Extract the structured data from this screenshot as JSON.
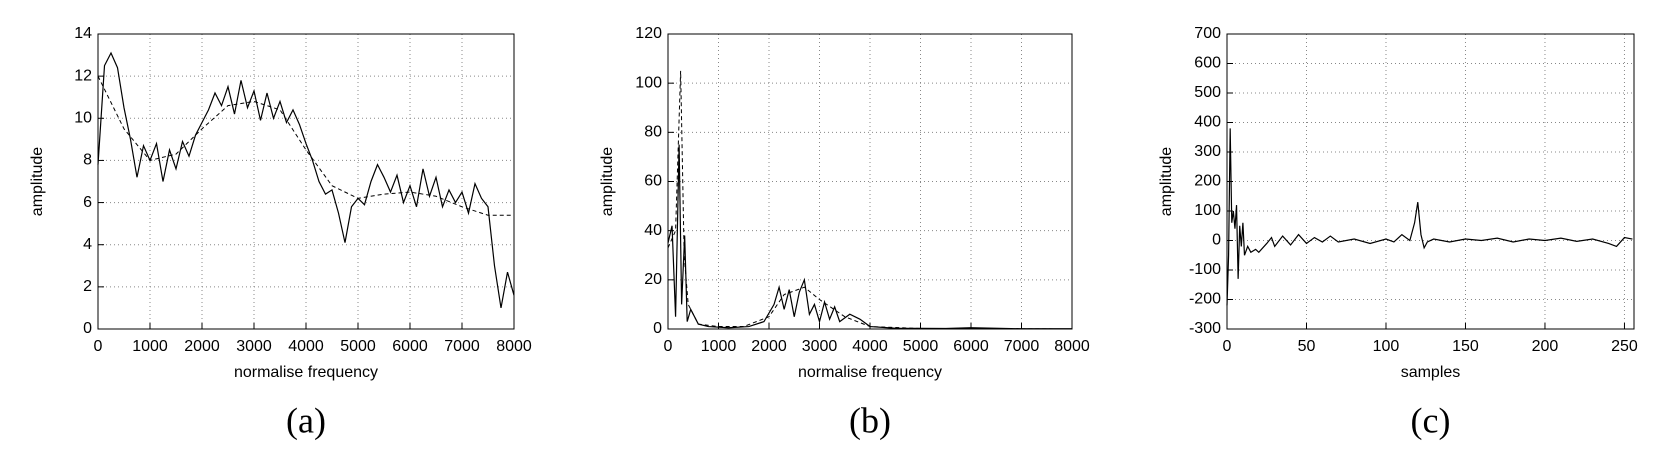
{
  "chart_data": [
    {
      "type": "line",
      "caption": "(a)",
      "xlabel": "normalise frequency",
      "ylabel": "amplitude",
      "xlim": [
        0,
        8000
      ],
      "xticks": [
        0,
        1000,
        2000,
        3000,
        4000,
        5000,
        6000,
        7000,
        8000
      ],
      "ylim": [
        0,
        14
      ],
      "yticks": [
        0,
        2,
        4,
        6,
        8,
        10,
        12,
        14
      ],
      "grid": true,
      "series": [
        {
          "color": "#000000",
          "style": "solid",
          "x": [
            0,
            125,
            250,
            375,
            500,
            625,
            750,
            875,
            1000,
            1125,
            1250,
            1375,
            1500,
            1625,
            1750,
            1875,
            2000,
            2125,
            2250,
            2375,
            2500,
            2625,
            2750,
            2875,
            3000,
            3125,
            3250,
            3375,
            3500,
            3625,
            3750,
            3875,
            4000,
            4125,
            4250,
            4375,
            4500,
            4625,
            4750,
            4875,
            5000,
            5125,
            5250,
            5375,
            5500,
            5625,
            5750,
            5875,
            6000,
            6125,
            6250,
            6375,
            6500,
            6625,
            6750,
            6875,
            7000,
            7125,
            7250,
            7375,
            7500,
            7625,
            7750,
            7875,
            8000
          ],
          "values": [
            7.8,
            12.5,
            13.1,
            12.4,
            10.5,
            9.0,
            7.2,
            8.7,
            8.0,
            8.8,
            7.0,
            8.5,
            7.6,
            8.9,
            8.2,
            9.2,
            9.8,
            10.4,
            11.2,
            10.6,
            11.5,
            10.2,
            11.8,
            10.5,
            11.3,
            9.9,
            11.2,
            10.0,
            10.8,
            9.8,
            10.4,
            9.7,
            8.8,
            8.0,
            7.0,
            6.4,
            6.6,
            5.5,
            4.1,
            5.8,
            6.2,
            5.9,
            7.0,
            7.8,
            7.2,
            6.5,
            7.3,
            6.0,
            6.8,
            5.8,
            7.6,
            6.3,
            7.2,
            5.8,
            6.6,
            6.0,
            6.5,
            5.5,
            6.9,
            6.2,
            5.8,
            3.0,
            1.0,
            2.7,
            1.6
          ]
        },
        {
          "color": "#000000",
          "style": "dashed",
          "x": [
            0,
            500,
            1000,
            1500,
            2000,
            2500,
            3000,
            3500,
            4000,
            4500,
            5000,
            5500,
            6000,
            6500,
            7000,
            7500,
            8000
          ],
          "values": [
            12,
            9.5,
            8.0,
            8.3,
            9.5,
            10.6,
            10.8,
            10.4,
            8.5,
            6.8,
            6.2,
            6.4,
            6.5,
            6.3,
            5.8,
            5.4,
            5.4
          ]
        }
      ]
    },
    {
      "type": "line",
      "caption": "(b)",
      "xlabel": "normalise frequency",
      "ylabel": "amplitude",
      "xlim": [
        0,
        8000
      ],
      "xticks": [
        0,
        1000,
        2000,
        3000,
        4000,
        5000,
        6000,
        7000,
        8000
      ],
      "ylim": [
        0,
        120
      ],
      "yticks": [
        0,
        20,
        40,
        60,
        80,
        100,
        120
      ],
      "grid": true,
      "series": [
        {
          "color": "#000000",
          "style": "solid",
          "x": [
            0,
            80,
            150,
            220,
            270,
            330,
            380,
            450,
            600,
            800,
            1200,
            1600,
            1900,
            2100,
            2200,
            2300,
            2400,
            2500,
            2600,
            2700,
            2800,
            2900,
            3000,
            3100,
            3200,
            3300,
            3400,
            3600,
            3800,
            4000,
            4500,
            5500,
            6000,
            7000,
            8000
          ],
          "values": [
            35,
            42,
            5,
            75,
            10,
            38,
            3,
            8,
            2,
            1,
            0.5,
            1,
            3,
            10,
            17,
            8,
            16,
            5,
            15,
            20,
            6,
            10,
            3,
            11,
            4,
            9,
            3,
            6,
            4,
            1,
            0.3,
            0.2,
            0.5,
            0.1,
            0.1
          ]
        },
        {
          "color": "#000000",
          "style": "dashed",
          "x": [
            0,
            150,
            250,
            320,
            400,
            600,
            1000,
            1500,
            2000,
            2300,
            2700,
            3000,
            3500,
            4000,
            5000,
            8000
          ],
          "values": [
            33,
            40,
            105,
            30,
            10,
            2,
            1,
            1,
            5,
            14,
            17,
            12,
            5,
            1,
            0.2,
            0
          ]
        }
      ]
    },
    {
      "type": "line",
      "caption": "(c)",
      "xlabel": "samples",
      "ylabel": "amplitude",
      "xlim": [
        0,
        256
      ],
      "xticks": [
        0,
        50,
        100,
        150,
        200,
        250
      ],
      "ylim": [
        -300,
        700
      ],
      "yticks": [
        -300,
        -200,
        -100,
        0,
        100,
        200,
        300,
        400,
        500,
        600,
        700
      ],
      "grid": true,
      "series": [
        {
          "color": "#000000",
          "style": "solid",
          "x": [
            0,
            1,
            2,
            3,
            4,
            5,
            6,
            7,
            8,
            9,
            10,
            11,
            13,
            15,
            18,
            20,
            25,
            28,
            30,
            35,
            40,
            45,
            50,
            55,
            60,
            65,
            70,
            80,
            90,
            100,
            105,
            110,
            115,
            118,
            120,
            122,
            124,
            126,
            130,
            140,
            150,
            160,
            170,
            180,
            190,
            200,
            210,
            220,
            230,
            240,
            245,
            250,
            255
          ],
          "values": [
            -220,
            -50,
            380,
            60,
            100,
            40,
            120,
            -130,
            50,
            -20,
            60,
            -50,
            -20,
            -40,
            -30,
            -40,
            -10,
            10,
            -20,
            15,
            -15,
            20,
            -10,
            10,
            -5,
            15,
            -5,
            5,
            -10,
            5,
            -5,
            20,
            0,
            60,
            130,
            20,
            -25,
            -5,
            5,
            -5,
            5,
            0,
            8,
            -5,
            5,
            0,
            8,
            -3,
            5,
            -10,
            -20,
            10,
            5
          ]
        }
      ]
    }
  ]
}
